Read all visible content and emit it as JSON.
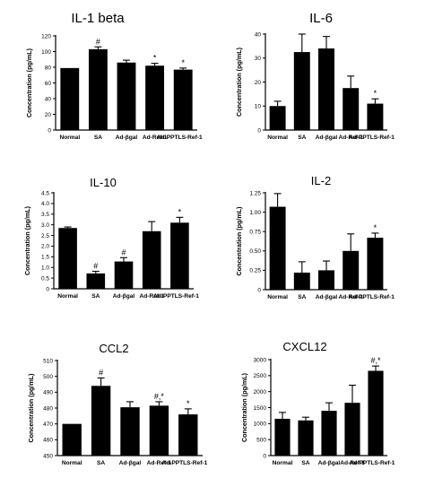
{
  "chart_data": [
    {
      "type": "bar",
      "title": "IL-1 beta",
      "ylabel": "Concentration (pg/mL)",
      "categories": [
        "Normal",
        "SA",
        "Ad-βgal",
        "Ad-Ref-1",
        "Ad-PPTLS-Ref-1"
      ],
      "values": [
        79,
        103,
        86,
        82,
        77
      ],
      "errors": [
        0,
        3,
        3,
        3,
        2
      ],
      "annotations": [
        "",
        "#",
        "",
        "*",
        "*"
      ],
      "ylim": [
        0,
        120
      ],
      "yticks": [
        "0",
        "20",
        "40",
        "60",
        "80",
        "100",
        "120"
      ]
    },
    {
      "type": "bar",
      "title": "IL-6",
      "ylabel": "Concentration (pg/mL)",
      "categories": [
        "Normal",
        "SA",
        "Ad-βgal",
        "Ad-Ref-1",
        "Ad-PPTLS-Ref-1"
      ],
      "values": [
        10,
        32.5,
        34,
        17.5,
        11
      ],
      "errors": [
        2,
        7.5,
        5,
        5,
        2
      ],
      "annotations": [
        "",
        "",
        "",
        "",
        "*"
      ],
      "ylim": [
        0,
        40
      ],
      "yticks": [
        "0",
        "10",
        "20",
        "30",
        "40"
      ]
    },
    {
      "type": "bar",
      "title": "IL-10",
      "ylabel": "Concentration (pg/mL)",
      "categories": [
        "Normal",
        "SA",
        "Ad-βgal",
        "Ad-Ref-1",
        "Ad-PPTLS-Ref-1"
      ],
      "values": [
        2.85,
        0.72,
        1.28,
        2.7,
        3.1
      ],
      "errors": [
        0.05,
        0.1,
        0.18,
        0.45,
        0.25
      ],
      "annotations": [
        "",
        "#",
        "#",
        "",
        "*"
      ],
      "ylim": [
        0,
        4.5
      ],
      "yticks": [
        "0",
        "0.5",
        "1.0",
        "1.5",
        "2.0",
        "2.5",
        "3.0",
        "3.5",
        "4.0",
        "4.5"
      ]
    },
    {
      "type": "bar",
      "title": "IL-2",
      "ylabel": "Concentration (pg/mL)",
      "categories": [
        "Normal",
        "SA",
        "Ad-βgal",
        "Ad-Ref-1",
        "Ad-PPTLS-Ref-1"
      ],
      "values": [
        1.07,
        0.22,
        0.25,
        0.5,
        0.67
      ],
      "errors": [
        0.17,
        0.14,
        0.12,
        0.22,
        0.06
      ],
      "annotations": [
        "",
        "",
        "",
        "",
        "*"
      ],
      "ylim": [
        0,
        1.25
      ],
      "yticks": [
        "0",
        "0.25",
        "0.50",
        "0.75",
        "1.00",
        "1.25"
      ]
    },
    {
      "type": "bar",
      "title": "CCL2",
      "ylabel": "Concentration (pg/mL)",
      "categories": [
        "Normal",
        "SA",
        "Ad-βgal",
        "Ad-Ref-1",
        "Ad-PPTLS-Ref-1"
      ],
      "values": [
        470,
        494,
        480.5,
        481.5,
        476
      ],
      "errors": [
        0,
        5,
        3.5,
        2.5,
        3.5
      ],
      "annotations": [
        "",
        "#",
        "",
        "#,*",
        "*"
      ],
      "ylim": [
        450,
        510
      ],
      "yticks": [
        "450",
        "460",
        "470",
        "480",
        "490",
        "500",
        "510"
      ]
    },
    {
      "type": "bar",
      "title": "CXCL12",
      "ylabel": "Concentration (pg/mL)",
      "categories": [
        "Normal",
        "SA",
        "Ad-βgal",
        "Ad-Ref-1",
        "Ad-PPTLS-Ref-1"
      ],
      "values": [
        1150,
        1100,
        1400,
        1650,
        2650
      ],
      "errors": [
        200,
        100,
        250,
        550,
        150
      ],
      "annotations": [
        "",
        "",
        "",
        "",
        "#,*"
      ],
      "ylim": [
        0,
        3000
      ],
      "yticks": [
        "0",
        "500",
        "1000",
        "1500",
        "2000",
        "2500",
        "3000"
      ]
    }
  ]
}
